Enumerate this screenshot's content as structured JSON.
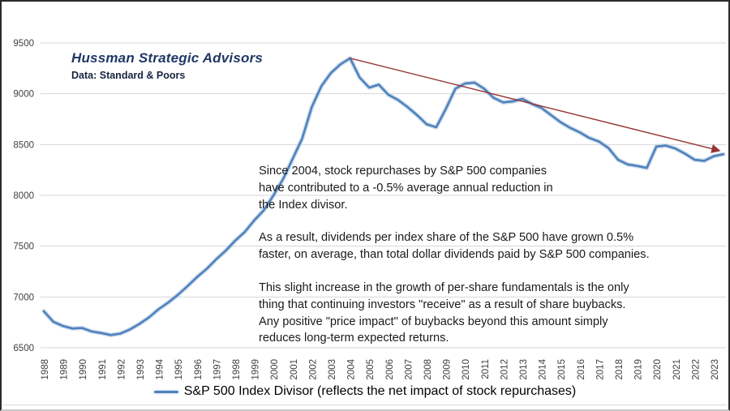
{
  "header": {
    "title": "Hussman Strategic Advisors",
    "subtitle": "Data: Standard & Poors"
  },
  "annotations": {
    "para1": "Since 2004, stock repurchases by S&P 500 companies\nhave contributed to a -0.5% average annual reduction in\nthe Index divisor.",
    "para2": "As a result, dividends per index share of the S&P 500 have grown 0.5%\nfaster, on average, than total dollar dividends paid by S&P 500 companies.",
    "para3": "This slight increase in the growth of per-share fundamentals is the only\nthing that continuing investors \"receive\" as a result of share buybacks.\nAny positive \"price impact\" of buybacks beyond this amount simply\nreduces long-term expected returns."
  },
  "legend": {
    "label": "S&P 500 Index Divisor (reflects the net impact of stock repurchases)"
  },
  "colors": {
    "line": "#4f81bd",
    "line_halo": "#aec6e0",
    "trend_arrow": "#943634",
    "gridline": "#d6d6d6",
    "axis_text": "#404040",
    "title": "#1f3864"
  },
  "chart_data": {
    "type": "line",
    "title": "",
    "xlabel": "",
    "ylabel": "",
    "grid": "horizontal",
    "legend_position": "bottom",
    "x_start": 1988,
    "x_step": 0.5,
    "x_tick_years": [
      1988,
      1989,
      1990,
      1991,
      1992,
      1993,
      1994,
      1995,
      1996,
      1997,
      1998,
      1999,
      2000,
      2001,
      2002,
      2003,
      2004,
      2005,
      2006,
      2007,
      2008,
      2009,
      2010,
      2011,
      2012,
      2013,
      2014,
      2015,
      2016,
      2017,
      2018,
      2019,
      2020,
      2021,
      2022,
      2023
    ],
    "y_ticks": [
      9500,
      9000,
      8500,
      8000,
      7500,
      7000,
      6500
    ],
    "ylim": [
      6500,
      9500
    ],
    "xlim": [
      1988,
      2023.5
    ],
    "series": [
      {
        "name": "S&P 500 Index Divisor (reflects the net impact of stock repurchases)",
        "values": [
          6860,
          6755,
          6715,
          6690,
          6695,
          6660,
          6645,
          6625,
          6640,
          6680,
          6735,
          6800,
          6880,
          6945,
          7020,
          7105,
          7195,
          7275,
          7370,
          7455,
          7555,
          7640,
          7755,
          7855,
          8000,
          8160,
          8360,
          8560,
          8870,
          9075,
          9205,
          9290,
          9350,
          9160,
          9060,
          9090,
          8990,
          8940,
          8870,
          8790,
          8700,
          8670,
          8850,
          9050,
          9100,
          9110,
          9050,
          8960,
          8915,
          8925,
          8950,
          8900,
          8860,
          8790,
          8720,
          8665,
          8620,
          8565,
          8530,
          8465,
          8350,
          8305,
          8290,
          8270,
          8480,
          8490,
          8460,
          8410,
          8350,
          8340,
          8385,
          8405
        ]
      }
    ],
    "trendline": {
      "from": {
        "x": 2004,
        "y": 9350
      },
      "to": {
        "x": 2023.3,
        "y": 8440
      },
      "arrow": true
    }
  }
}
